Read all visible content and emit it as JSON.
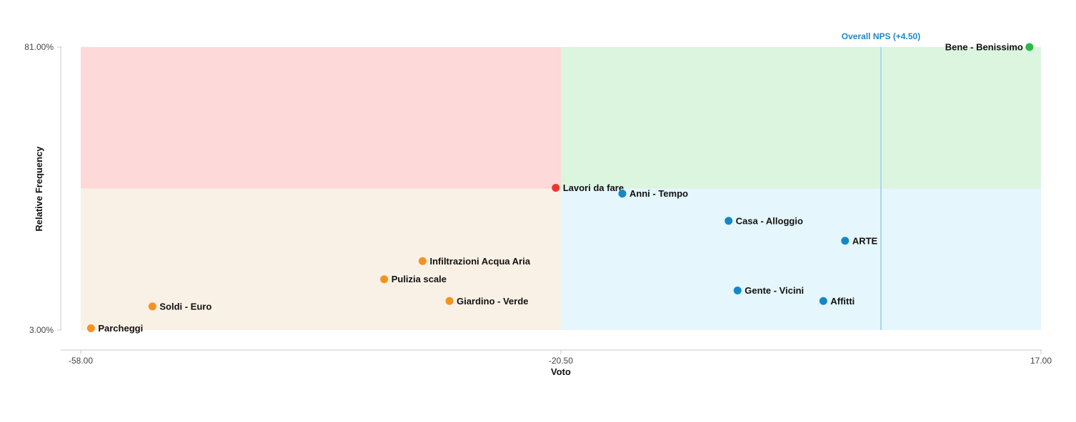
{
  "chart_data": {
    "type": "scatter",
    "xlabel": "Voto",
    "ylabel": "Relative Frequency",
    "xlim": [
      -58.0,
      17.0
    ],
    "ylim": [
      3.0,
      81.0
    ],
    "x_ticks": [
      "-58.00",
      "-20.50",
      "17.00"
    ],
    "y_ticks": [
      "81.00%",
      "3.00%"
    ],
    "x_tick_values": [
      -58.0,
      -20.5,
      17.0
    ],
    "y_tick_values": [
      81.0,
      3.0
    ],
    "quadrant_split": {
      "x": -20.5,
      "y": 42.0
    },
    "quadrant_colors": {
      "top_left": "#fdd9d9",
      "top_right": "#dcf5df",
      "bottom_left": "#faf1e6",
      "bottom_right": "#e5f6fc"
    },
    "reference_line": {
      "label": "Overall NPS (+4.50)",
      "x": 4.5,
      "color": "#1b8ac9",
      "line_color": "#a9d7ec"
    },
    "point_colors": {
      "orange": "#f4921f",
      "red": "#e8372c",
      "blue": "#1488c7",
      "green": "#2db84a"
    },
    "points": [
      {
        "label": "Bene - Benissimo",
        "x": 16.1,
        "y": 81.0,
        "color": "green",
        "label_side": "left"
      },
      {
        "label": "Lavori da fare",
        "x": -20.9,
        "y": 42.2,
        "color": "red",
        "label_side": "right"
      },
      {
        "label": "Anni - Tempo",
        "x": -15.7,
        "y": 40.6,
        "color": "blue",
        "label_side": "right"
      },
      {
        "label": "Casa - Alloggio",
        "x": -7.4,
        "y": 33.1,
        "color": "blue",
        "label_side": "right"
      },
      {
        "label": "ARTE",
        "x": 1.7,
        "y": 27.6,
        "color": "blue",
        "label_side": "right"
      },
      {
        "label": "Gente - Vicini",
        "x": -6.7,
        "y": 13.9,
        "color": "blue",
        "label_side": "right"
      },
      {
        "label": "Affitti",
        "x": 0.0,
        "y": 11.0,
        "color": "blue",
        "label_side": "right"
      },
      {
        "label": "Infiltrazioni Acqua Aria",
        "x": -31.3,
        "y": 22.0,
        "color": "orange",
        "label_side": "right"
      },
      {
        "label": "Pulizia scale",
        "x": -34.3,
        "y": 17.0,
        "color": "orange",
        "label_side": "right"
      },
      {
        "label": "Giardino - Verde",
        "x": -29.2,
        "y": 11.0,
        "color": "orange",
        "label_side": "right"
      },
      {
        "label": "Soldi - Euro",
        "x": -52.4,
        "y": 9.5,
        "color": "orange",
        "label_side": "right"
      },
      {
        "label": "Parcheggi",
        "x": -57.2,
        "y": 3.5,
        "color": "orange",
        "label_side": "right"
      }
    ]
  }
}
